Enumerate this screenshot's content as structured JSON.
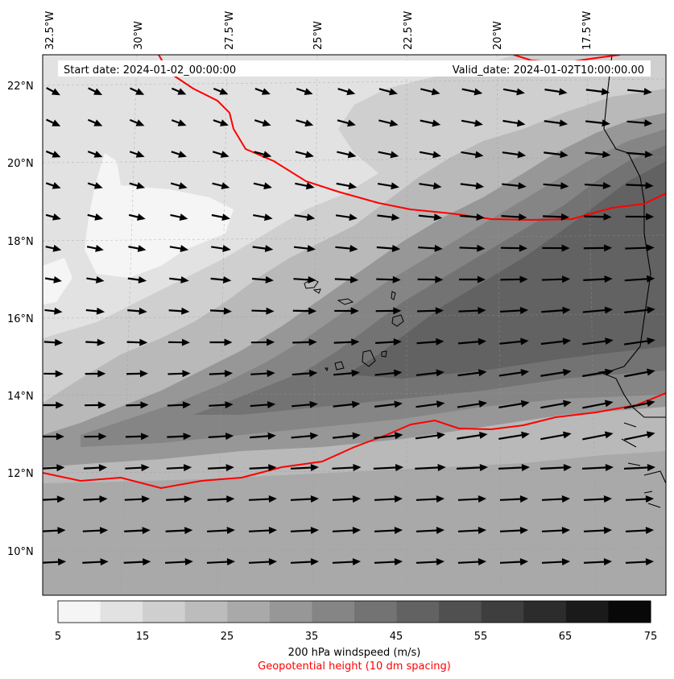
{
  "map": {
    "start_date": "Start date: 2024-01-02_00:00:00",
    "valid_date": "Valid_date: 2024-01-02T10:00:00.00",
    "lon_labels": [
      "32.5°W",
      "30°W",
      "27.5°W",
      "25°W",
      "22.5°W",
      "20°W",
      "17.5°W"
    ],
    "lat_labels": [
      "22°N",
      "20°N",
      "18°N",
      "16°N",
      "14°N",
      "12°N",
      "10°N"
    ],
    "contour_color": "#ff0000",
    "arrow_color": "#000000"
  },
  "colorbar": {
    "ticks": [
      "5",
      "15",
      "25",
      "35",
      "45",
      "55",
      "65",
      "75"
    ],
    "colors": [
      "#f5f5f5",
      "#e2e2e2",
      "#cfcfcf",
      "#bcbcbc",
      "#a9a9a9",
      "#979797",
      "#858585",
      "#737373",
      "#626262",
      "#505050",
      "#3e3e3e",
      "#2c2c2c",
      "#1a1a1a",
      "#080808"
    ],
    "label": "200 hPa windspeed (m/s)",
    "label2": "Geopotential height (10 dm spacing)",
    "label2_color": "#ff0000"
  }
}
